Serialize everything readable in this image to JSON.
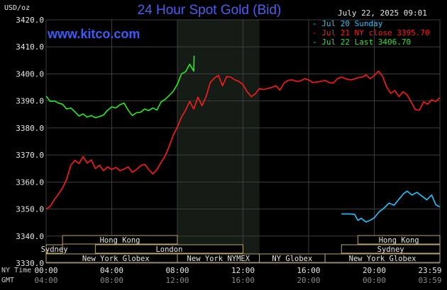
{
  "header": {
    "title": "24 Hour Spot Gold (Bid)",
    "brand": "www.kitco.com",
    "unit_label": "USD/oz",
    "timestamp": "July 22, 2025 09:01"
  },
  "legend": {
    "items": [
      {
        "text": "- Jul 20 Sunday",
        "color": "#1ec8ff"
      },
      {
        "text": "- Jul 21 NY close 3395.70",
        "color": "#ff1a1a"
      },
      {
        "text": "- Jul 22 Last 3406.70",
        "color": "#22ee22"
      }
    ]
  },
  "axis_rows": {
    "ny_time_label": "NY Time",
    "gmt_label": "GMT"
  },
  "markets": [
    {
      "name": "Hong Kong",
      "start": 1.0,
      "end": 8.0,
      "row": 0
    },
    {
      "name": "Sydney",
      "start": 0.0,
      "end": 1.0,
      "row": 1
    },
    {
      "name": "London",
      "start": 3.0,
      "end": 12.0,
      "row": 1
    },
    {
      "name": "New York Globex",
      "start": 0.0,
      "end": 8.5,
      "row": 2
    },
    {
      "name": "New York NYMEX",
      "start": 8.0,
      "end": 13.0,
      "row": 2
    },
    {
      "name": "NY Globex",
      "start": 13.0,
      "end": 17.0,
      "row": 2
    },
    {
      "name": "Hong Kong",
      "start": 19.0,
      "end": 24.0,
      "row": 0
    },
    {
      "name": "Sydney",
      "start": 18.0,
      "end": 24.0,
      "row": 1
    },
    {
      "name": "New York Globex",
      "start": 17.0,
      "end": 24.0,
      "row": 2
    }
  ],
  "chart_data": {
    "type": "line",
    "title": "24 Hour Spot Gold (Bid)",
    "ylabel": "USD/oz",
    "xlabel": "",
    "ylim": [
      3330,
      3420
    ],
    "xlim": [
      0,
      24
    ],
    "yticks": [
      "3330.0",
      "3340.0",
      "3350.0",
      "3360.0",
      "3370.0",
      "3380.0",
      "3390.0",
      "3400.0",
      "3410.0",
      "3420.0"
    ],
    "xticks_ny": [
      "00:00",
      "04:00",
      "08:00",
      "12:00",
      "16:00",
      "20:00",
      "23:59"
    ],
    "xticks_gmt": [
      "04:00",
      "08:00",
      "12:00",
      "16:00",
      "20:00",
      "00:00",
      "03:59"
    ],
    "grid": true,
    "highlight_range": [
      8.0,
      13.0
    ],
    "series": [
      {
        "name": "Jul 20 Sunday",
        "color": "#1ec8ff",
        "x": [
          18.0,
          18.5,
          18.8,
          19.0,
          19.2,
          19.5,
          19.8,
          20.0,
          20.3,
          20.6,
          20.9,
          21.2,
          21.5,
          21.8,
          22.0,
          22.3,
          22.6,
          22.9,
          23.2,
          23.5,
          23.75,
          23.99
        ],
        "y": [
          3348.2,
          3348.2,
          3348.0,
          3345.8,
          3346.6,
          3345.2,
          3346.0,
          3346.8,
          3349.0,
          3350.4,
          3352.2,
          3351.4,
          3353.6,
          3355.8,
          3356.6,
          3355.2,
          3356.2,
          3354.8,
          3353.4,
          3355.2,
          3351.6,
          3350.8
        ]
      },
      {
        "name": "Jul 21 NY close 3395.70",
        "color": "#ff1a1a",
        "x": [
          0.0,
          0.25,
          0.5,
          0.75,
          1.0,
          1.25,
          1.5,
          1.75,
          2.0,
          2.25,
          2.5,
          2.75,
          3.0,
          3.25,
          3.5,
          3.75,
          4.0,
          4.25,
          4.5,
          4.75,
          5.0,
          5.25,
          5.5,
          5.75,
          6.0,
          6.25,
          6.5,
          6.75,
          7.0,
          7.25,
          7.5,
          7.75,
          8.0,
          8.25,
          8.5,
          8.75,
          9.0,
          9.25,
          9.5,
          9.75,
          10.0,
          10.25,
          10.5,
          10.75,
          11.0,
          11.25,
          11.5,
          11.75,
          12.0,
          12.25,
          12.5,
          12.75,
          13.0,
          13.25,
          13.5,
          13.75,
          14.0,
          14.25,
          14.5,
          14.75,
          15.0,
          15.25,
          15.5,
          15.75,
          16.0,
          16.25,
          16.5,
          16.75,
          17.0,
          17.25,
          17.5,
          17.75,
          18.0,
          18.25,
          18.5,
          18.75,
          19.0,
          19.25,
          19.5,
          19.75,
          20.0,
          20.25,
          20.5,
          20.75,
          21.0,
          21.25,
          21.5,
          21.75,
          22.0,
          22.25,
          22.5,
          22.75,
          23.0,
          23.25,
          23.5,
          23.75,
          23.99
        ],
        "y": [
          3350.0,
          3351.0,
          3353.5,
          3355.5,
          3357.8,
          3361.0,
          3366.2,
          3368.0,
          3366.8,
          3369.4,
          3367.0,
          3368.2,
          3365.0,
          3366.2,
          3364.2,
          3365.6,
          3364.6,
          3365.4,
          3364.2,
          3364.8,
          3365.6,
          3363.6,
          3364.6,
          3366.0,
          3366.6,
          3364.6,
          3363.0,
          3364.6,
          3367.2,
          3369.6,
          3373.2,
          3377.4,
          3380.4,
          3384.0,
          3386.6,
          3389.8,
          3387.0,
          3391.4,
          3388.2,
          3391.6,
          3396.8,
          3398.4,
          3399.4,
          3395.6,
          3399.0,
          3398.8,
          3397.8,
          3397.2,
          3396.0,
          3393.4,
          3391.6,
          3392.6,
          3394.6,
          3394.2,
          3394.6,
          3395.0,
          3395.6,
          3394.0,
          3396.6,
          3397.6,
          3397.8,
          3397.2,
          3397.4,
          3398.2,
          3397.8,
          3396.8,
          3397.0,
          3397.2,
          3397.6,
          3396.8,
          3396.6,
          3398.2,
          3398.8,
          3398.2,
          3397.8,
          3398.0,
          3398.6,
          3398.8,
          3399.6,
          3398.2,
          3399.4,
          3401.0,
          3399.2,
          3395.2,
          3392.8,
          3393.8,
          3391.6,
          3393.4,
          3392.2,
          3389.6,
          3386.8,
          3386.6,
          3389.6,
          3388.8,
          3390.4,
          3389.8,
          3391.2
        ]
      },
      {
        "name": "Jul 22 Last 3406.70",
        "color": "#22ee22",
        "x": [
          0.0,
          0.25,
          0.5,
          0.75,
          1.0,
          1.25,
          1.5,
          1.75,
          2.0,
          2.25,
          2.5,
          2.75,
          3.0,
          3.25,
          3.5,
          3.75,
          4.0,
          4.25,
          4.5,
          4.75,
          5.0,
          5.25,
          5.5,
          5.75,
          6.0,
          6.25,
          6.5,
          6.75,
          7.0,
          7.25,
          7.5,
          7.75,
          8.0,
          8.25,
          8.5,
          8.75,
          9.0,
          9.02
        ],
        "y": [
          3391.8,
          3389.8,
          3390.0,
          3389.2,
          3388.8,
          3387.0,
          3387.4,
          3386.0,
          3384.4,
          3385.2,
          3384.0,
          3384.6,
          3383.8,
          3384.2,
          3384.8,
          3386.6,
          3387.8,
          3387.4,
          3388.6,
          3389.2,
          3386.6,
          3384.6,
          3385.6,
          3385.8,
          3387.0,
          3386.4,
          3387.4,
          3386.6,
          3389.6,
          3390.6,
          3392.0,
          3393.6,
          3396.2,
          3400.0,
          3400.8,
          3403.6,
          3401.0,
          3406.7
        ]
      }
    ]
  }
}
